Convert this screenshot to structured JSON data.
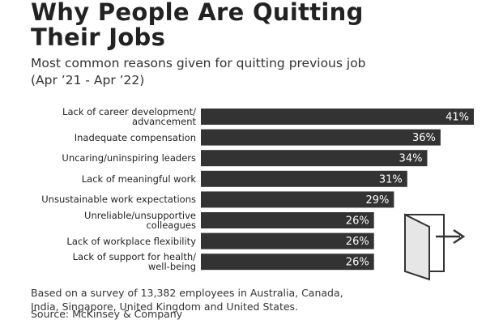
{
  "chart_data": {
    "type": "bar",
    "orientation": "horizontal",
    "title": "Why People Are Quitting\nTheir Jobs",
    "subtitle": "Most common reasons given for quitting previous job\n(Apr ’21 - Apr ’22)",
    "categories": [
      "Lack of career development/\nadvancement",
      "Inadequate compensation",
      "Uncaring/uninspiring leaders",
      "Lack of meaningful work",
      "Unsustainable work expectations",
      "Unreliable/unsupportive\ncolleagues",
      "Lack of workplace flexibility",
      "Lack of support for health/\nwell-being"
    ],
    "values": [
      41,
      36,
      34,
      31,
      29,
      26,
      26,
      26
    ],
    "value_labels": [
      "41%",
      "36%",
      "34%",
      "31%",
      "29%",
      "26%",
      "26%",
      "26%"
    ],
    "color": "#333333",
    "xlim": [
      0,
      41
    ],
    "note": "Based on a survey of 13,382 employees in Australia, Canada,\nIndia, Singapore, United Kingdom and United States.",
    "source": "Source: McKinsey & Company"
  }
}
